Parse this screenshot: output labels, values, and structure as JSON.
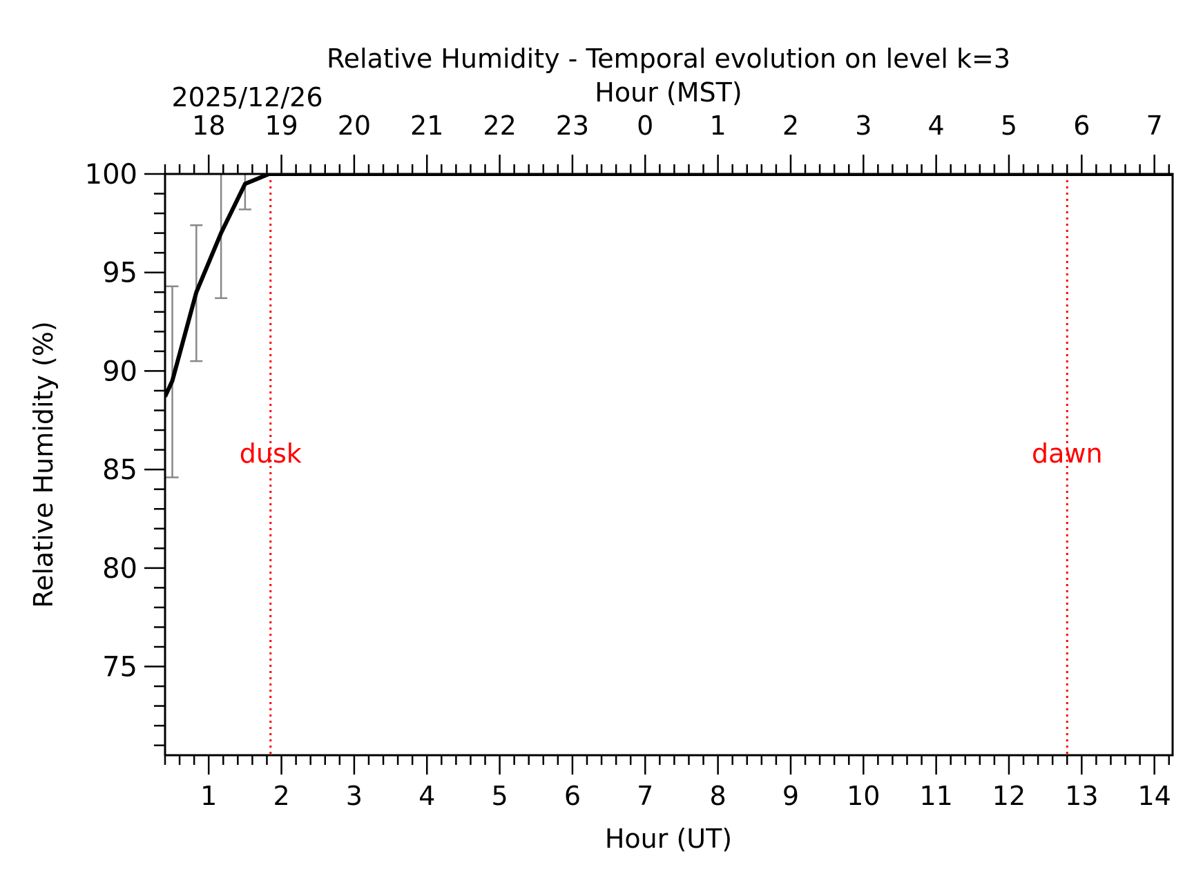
{
  "chart_data": {
    "type": "line",
    "title": "Relative Humidity - Temporal evolution on level k=3",
    "date_label": "2025/12/26",
    "xlabel_bottom": "Hour (UT)",
    "xlabel_top": "Hour (MST)",
    "ylabel": "Relative Humidity (%)",
    "xlim": [
      0.4,
      14.25
    ],
    "ylim": [
      70.5,
      100
    ],
    "bottom_ticks": [
      {
        "value": 1,
        "label": "1"
      },
      {
        "value": 2,
        "label": "2"
      },
      {
        "value": 3,
        "label": "3"
      },
      {
        "value": 4,
        "label": "4"
      },
      {
        "value": 5,
        "label": "5"
      },
      {
        "value": 6,
        "label": "6"
      },
      {
        "value": 7,
        "label": "7"
      },
      {
        "value": 8,
        "label": "8"
      },
      {
        "value": 9,
        "label": "9"
      },
      {
        "value": 10,
        "label": "10"
      },
      {
        "value": 11,
        "label": "11"
      },
      {
        "value": 12,
        "label": "12"
      },
      {
        "value": 13,
        "label": "13"
      },
      {
        "value": 14,
        "label": "14"
      }
    ],
    "top_ticks": [
      {
        "value": 1,
        "label": "18"
      },
      {
        "value": 2,
        "label": "19"
      },
      {
        "value": 3,
        "label": "20"
      },
      {
        "value": 4,
        "label": "21"
      },
      {
        "value": 5,
        "label": "22"
      },
      {
        "value": 6,
        "label": "23"
      },
      {
        "value": 7,
        "label": "0"
      },
      {
        "value": 8,
        "label": "1"
      },
      {
        "value": 9,
        "label": "2"
      },
      {
        "value": 10,
        "label": "3"
      },
      {
        "value": 11,
        "label": "4"
      },
      {
        "value": 12,
        "label": "5"
      },
      {
        "value": 13,
        "label": "6"
      },
      {
        "value": 14,
        "label": "7"
      }
    ],
    "y_ticks": [
      {
        "value": 75,
        "label": "75"
      },
      {
        "value": 80,
        "label": "80"
      },
      {
        "value": 85,
        "label": "85"
      },
      {
        "value": 90,
        "label": "90"
      },
      {
        "value": 95,
        "label": "95"
      },
      {
        "value": 100,
        "label": "100"
      }
    ],
    "series": [
      {
        "color": "#000000",
        "x": [
          0.4,
          0.5,
          0.83,
          1.17,
          1.5,
          1.83,
          2.17,
          3,
          4,
          5,
          6,
          7,
          8,
          9,
          10,
          11,
          12,
          13,
          14,
          14.25
        ],
        "y": [
          88.7,
          89.5,
          94.0,
          97.0,
          99.5,
          100.0,
          100.0,
          100.0,
          100.0,
          100.0,
          100.0,
          100.0,
          100.0,
          100.0,
          100.0,
          100.0,
          100.0,
          100.0,
          100.0,
          100.0
        ]
      }
    ],
    "error_bars": [
      {
        "x": 0.5,
        "low": 84.6,
        "high": 94.3
      },
      {
        "x": 0.83,
        "low": 90.5,
        "high": 97.4
      },
      {
        "x": 1.17,
        "low": 93.7,
        "high": 100.0
      },
      {
        "x": 1.5,
        "low": 98.2,
        "high": 100.0
      }
    ],
    "error_bar_color": "#888888",
    "markers": [
      {
        "x": 1.85,
        "label": "dusk",
        "color": "#ff0000"
      },
      {
        "x": 12.8,
        "label": "dawn",
        "color": "#ff0000"
      }
    ],
    "marker_label_y": 85,
    "grid": false
  }
}
